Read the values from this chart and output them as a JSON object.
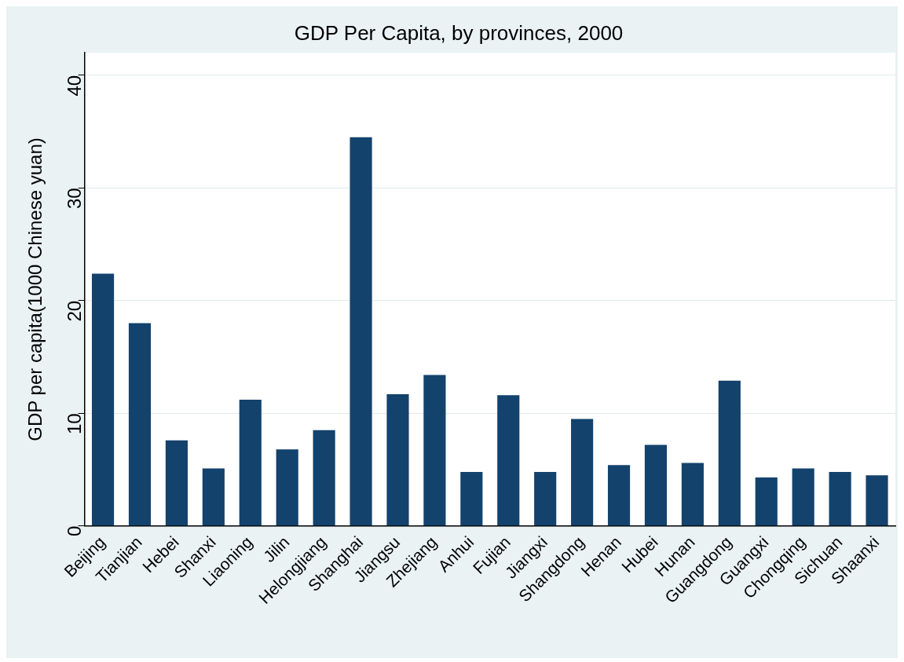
{
  "chart_data": {
    "type": "bar",
    "title": "GDP Per Capita, by provinces, 2000",
    "ylabel": "GDP per capita(1000 Chinese yuan)",
    "categories": [
      "Beijing",
      "Tianjian",
      "Hebei",
      "Shanxi",
      "Liaoning",
      "Jilin",
      "Helongjiang",
      "Shanghai",
      "Jiangsu",
      "Zhejiang",
      "Anhui",
      "Fujian",
      "Jiangxi",
      "Shangdong",
      "Henan",
      "Hubei",
      "Hunan",
      "Guangdong",
      "Guangxi",
      "Chongqing",
      "Sichuan",
      "Shaanxi"
    ],
    "values": [
      22.4,
      18,
      7.6,
      5.1,
      11.2,
      6.8,
      8.5,
      34.5,
      11.7,
      13.4,
      4.8,
      11.6,
      4.8,
      9.5,
      5.4,
      7.2,
      5.6,
      12.9,
      4.3,
      5.1,
      4.8,
      4.5
    ],
    "color": "#13426d",
    "ylim": [
      0,
      42
    ],
    "yticks": [
      0,
      10,
      20,
      30,
      40
    ],
    "grid": "y",
    "legend": false
  }
}
